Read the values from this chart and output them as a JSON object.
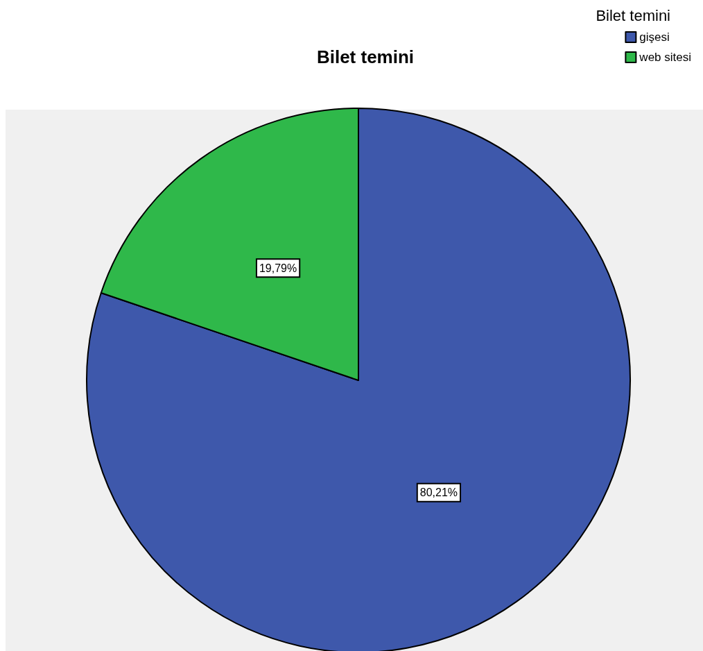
{
  "chart_data": {
    "type": "pie",
    "title": "Bilet temini",
    "legend_title": "Bilet temini",
    "categories": [
      "gişesi",
      "web sitesi"
    ],
    "values": [
      80.21,
      19.79
    ],
    "colors": [
      "#3e58ab",
      "#2fb84a"
    ],
    "value_labels": [
      "80,21%",
      "19,79%"
    ],
    "legend": "top right"
  }
}
